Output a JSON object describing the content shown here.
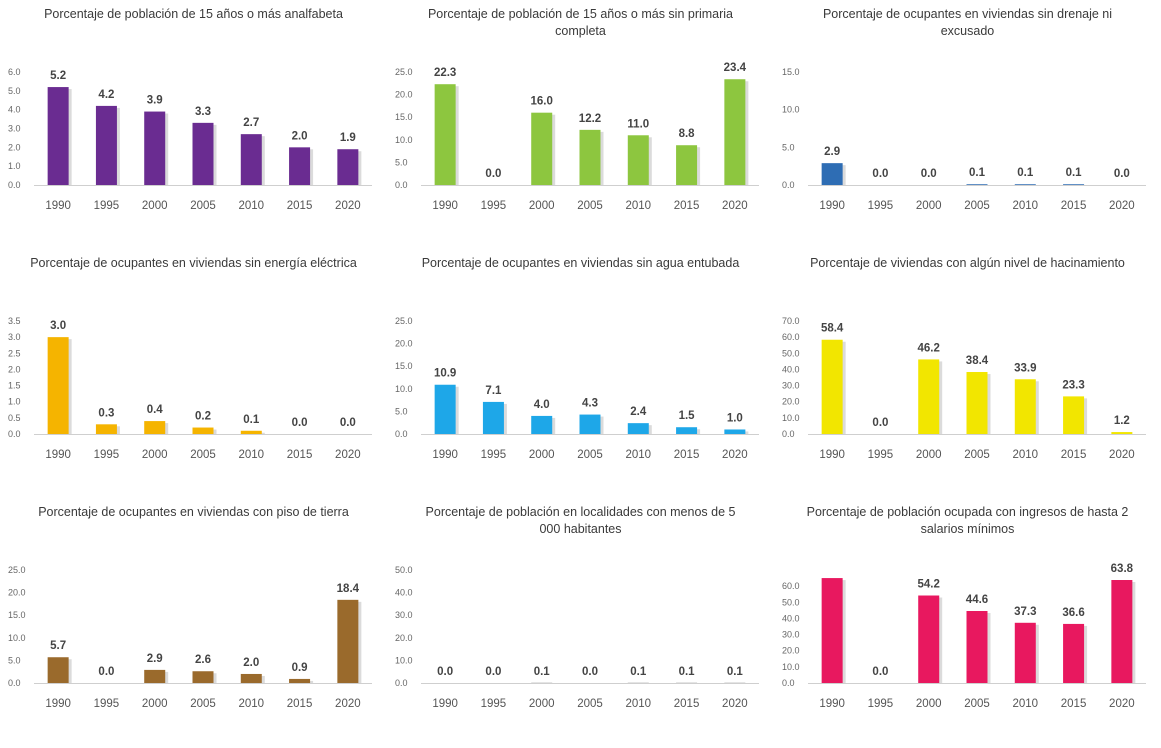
{
  "chart_data": [
    {
      "type": "bar",
      "title": "Porcentaje de población de 15 años o más analfabeta",
      "categories": [
        "1990",
        "1995",
        "2000",
        "2005",
        "2010",
        "2015",
        "2020"
      ],
      "values": [
        5.2,
        4.2,
        3.9,
        3.3,
        2.7,
        2.0,
        1.9
      ],
      "labels": [
        "5.2",
        "4.2",
        "3.9",
        "3.3",
        "2.7",
        "2.0",
        "1.9"
      ],
      "yticks": [
        "0.0",
        "1.0",
        "2.0",
        "3.0",
        "4.0",
        "5.0",
        "6.0"
      ],
      "ylim": [
        0,
        6
      ],
      "color": "#6a2c91"
    },
    {
      "type": "bar",
      "title": "Porcentaje de población de 15 años o más sin primaria completa",
      "categories": [
        "1990",
        "1995",
        "2000",
        "2005",
        "2010",
        "2015",
        "2020"
      ],
      "values": [
        22.3,
        0.0,
        16.0,
        12.2,
        11.0,
        8.8,
        23.4
      ],
      "labels": [
        "22.3",
        "0.0",
        "16.0",
        "12.2",
        "11.0",
        "8.8",
        "23.4"
      ],
      "yticks": [
        "0.0",
        "5.0",
        "10.0",
        "15.0",
        "20.0",
        "25.0"
      ],
      "ylim": [
        0,
        25
      ],
      "color": "#8dc63f"
    },
    {
      "type": "bar",
      "title": "Porcentaje de ocupantes en viviendas sin drenaje ni excusado",
      "categories": [
        "1990",
        "1995",
        "2000",
        "2005",
        "2010",
        "2015",
        "2020"
      ],
      "values": [
        2.9,
        0.0,
        0.0,
        0.1,
        0.1,
        0.1,
        0.0
      ],
      "labels": [
        "2.9",
        "0.0",
        "0.0",
        "0.1",
        "0.1",
        "0.1",
        "0.0"
      ],
      "yticks": [
        "0.0",
        "5.0",
        "10.0",
        "15.0"
      ],
      "ylim": [
        0,
        15
      ],
      "color": "#2e6db4"
    },
    {
      "type": "bar",
      "title": "Porcentaje de ocupantes en viviendas sin energía eléctrica",
      "categories": [
        "1990",
        "1995",
        "2000",
        "2005",
        "2010",
        "2015",
        "2020"
      ],
      "values": [
        3.0,
        0.3,
        0.4,
        0.2,
        0.1,
        0.0,
        0.0
      ],
      "labels": [
        "3.0",
        "0.3",
        "0.4",
        "0.2",
        "0.1",
        "0.0",
        "0.0"
      ],
      "yticks": [
        "0.0",
        "0.5",
        "1.0",
        "1.5",
        "2.0",
        "2.5",
        "3.0",
        "3.5"
      ],
      "ylim": [
        0,
        3.5
      ],
      "color": "#f5b400"
    },
    {
      "type": "bar",
      "title": "Porcentaje de ocupantes en viviendas sin agua entubada",
      "categories": [
        "1990",
        "1995",
        "2000",
        "2005",
        "2010",
        "2015",
        "2020"
      ],
      "values": [
        10.9,
        7.1,
        4.0,
        4.3,
        2.4,
        1.5,
        1.0
      ],
      "labels": [
        "10.9",
        "7.1",
        "4.0",
        "4.3",
        "2.4",
        "1.5",
        "1.0"
      ],
      "yticks": [
        "0.0",
        "5.0",
        "10.0",
        "15.0",
        "20.0",
        "25.0"
      ],
      "ylim": [
        0,
        25
      ],
      "color": "#1ea7e8"
    },
    {
      "type": "bar",
      "title": "Porcentaje de viviendas con algún nivel de hacinamiento",
      "categories": [
        "1990",
        "1995",
        "2000",
        "2005",
        "2010",
        "2015",
        "2020"
      ],
      "values": [
        58.4,
        0.0,
        46.2,
        38.4,
        33.9,
        23.3,
        1.2
      ],
      "labels": [
        "58.4",
        "0.0",
        "46.2",
        "38.4",
        "33.9",
        "23.3",
        "1.2"
      ],
      "yticks": [
        "0.0",
        "10.0",
        "20.0",
        "30.0",
        "40.0",
        "50.0",
        "60.0",
        "70.0"
      ],
      "ylim": [
        0,
        70
      ],
      "color": "#f2e600"
    },
    {
      "type": "bar",
      "title": "Porcentaje de ocupantes en viviendas con piso de tierra",
      "categories": [
        "1990",
        "1995",
        "2000",
        "2005",
        "2010",
        "2015",
        "2020"
      ],
      "values": [
        5.7,
        0.0,
        2.9,
        2.6,
        2.0,
        0.9,
        18.4
      ],
      "labels": [
        "5.7",
        "0.0",
        "2.9",
        "2.6",
        "2.0",
        "0.9",
        "18.4"
      ],
      "yticks": [
        "0.0",
        "5.0",
        "10.0",
        "15.0",
        "20.0",
        "25.0"
      ],
      "ylim": [
        0,
        25
      ],
      "color": "#9a6a2c"
    },
    {
      "type": "bar",
      "title": "Porcentaje de población en localidades con menos de 5 000 habitantes",
      "categories": [
        "1990",
        "1995",
        "2000",
        "2005",
        "2010",
        "2015",
        "2020"
      ],
      "values": [
        0.0,
        0.0,
        0.1,
        0.0,
        0.1,
        0.1,
        0.1
      ],
      "labels": [
        "0.0",
        "0.0",
        "0.1",
        "0.0",
        "0.1",
        "0.1",
        "0.1"
      ],
      "yticks": [
        "0.0",
        "10.0",
        "20.0",
        "30.0",
        "40.0",
        "50.0"
      ],
      "ylim": [
        0,
        50
      ],
      "color": "#8a8a8a"
    },
    {
      "type": "bar",
      "title": "Porcentaje de población ocupada con ingresos de hasta 2 salarios mínimos",
      "categories": [
        "1990",
        "1995",
        "2000",
        "2005",
        "2010",
        "2015",
        "2020"
      ],
      "values": [
        65.0,
        0.0,
        54.2,
        44.6,
        37.3,
        36.6,
        63.8
      ],
      "labels": [
        "",
        "0.0",
        "54.2",
        "44.6",
        "37.3",
        "36.6",
        "63.8"
      ],
      "yticks": [
        "0.0",
        "10.0",
        "20.0",
        "30.0",
        "40.0",
        "50.0",
        "60.0"
      ],
      "ylim": [
        0,
        70
      ],
      "color": "#e8185f"
    }
  ]
}
